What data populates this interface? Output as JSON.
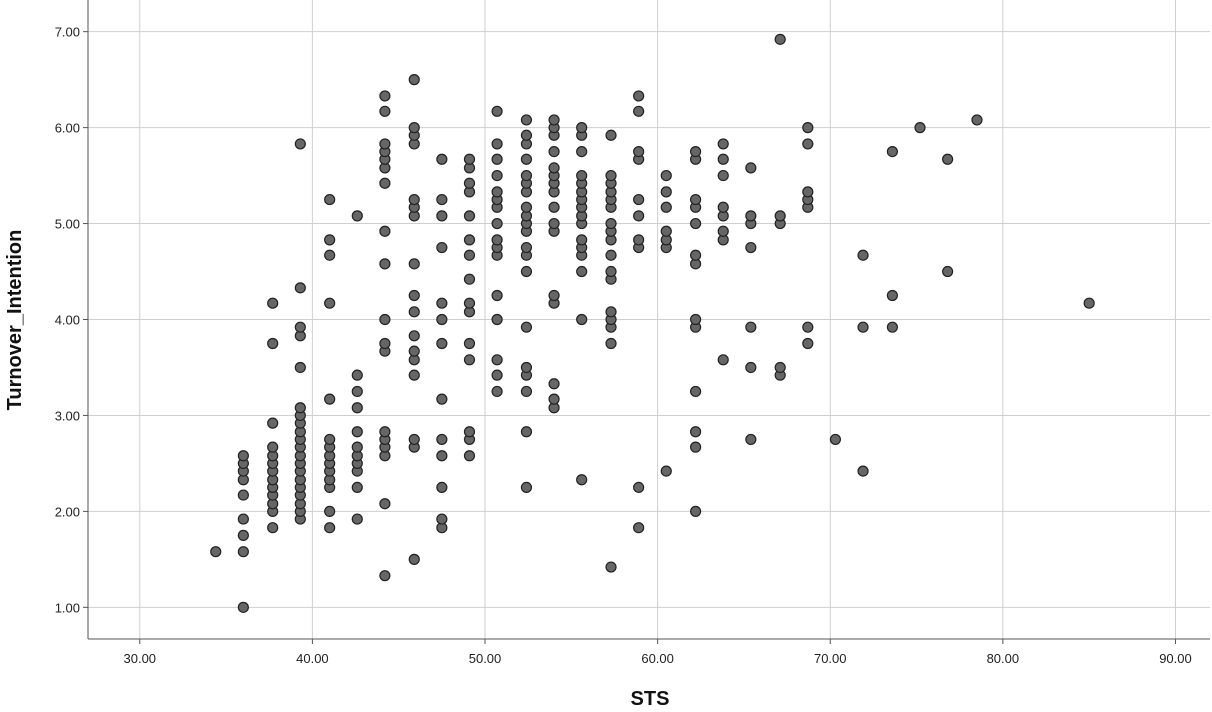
{
  "chart_data": {
    "type": "scatter",
    "title": "",
    "xlabel": "STS",
    "ylabel": "Turnover_Intention",
    "xlim": [
      27,
      92
    ],
    "ylim": [
      0.67,
      7.33
    ],
    "x_ticks": [
      30,
      40,
      50,
      60,
      70,
      80,
      90
    ],
    "y_ticks": [
      1,
      2,
      3,
      4,
      5,
      6,
      7
    ],
    "x_tick_labels": [
      "30.00",
      "40.00",
      "50.00",
      "60.00",
      "70.00",
      "80.00",
      "90.00"
    ],
    "y_tick_labels": [
      "1.00",
      "2.00",
      "3.00",
      "4.00",
      "5.00",
      "6.00",
      "7.00"
    ],
    "grid": true,
    "marker_fill": "#666666",
    "marker_stroke": "#222222",
    "grid_color": "#cfcfcf",
    "axis_color": "#555555",
    "points": [
      [
        34.4,
        1.58
      ],
      [
        36.0,
        1.0
      ],
      [
        36.0,
        1.58
      ],
      [
        36.0,
        1.75
      ],
      [
        36.0,
        1.92
      ],
      [
        36.0,
        2.17
      ],
      [
        36.0,
        2.33
      ],
      [
        36.0,
        2.42
      ],
      [
        36.0,
        2.5
      ],
      [
        36.0,
        2.58
      ],
      [
        37.7,
        1.83
      ],
      [
        37.7,
        2.0
      ],
      [
        37.7,
        2.08
      ],
      [
        37.7,
        2.17
      ],
      [
        37.7,
        2.25
      ],
      [
        37.7,
        2.33
      ],
      [
        37.7,
        2.42
      ],
      [
        37.7,
        2.5
      ],
      [
        37.7,
        2.58
      ],
      [
        37.7,
        2.67
      ],
      [
        37.7,
        2.92
      ],
      [
        37.7,
        3.75
      ],
      [
        37.7,
        4.17
      ],
      [
        39.3,
        1.92
      ],
      [
        39.3,
        2.0
      ],
      [
        39.3,
        2.08
      ],
      [
        39.3,
        2.17
      ],
      [
        39.3,
        2.25
      ],
      [
        39.3,
        2.33
      ],
      [
        39.3,
        2.42
      ],
      [
        39.3,
        2.5
      ],
      [
        39.3,
        2.58
      ],
      [
        39.3,
        2.67
      ],
      [
        39.3,
        2.75
      ],
      [
        39.3,
        2.83
      ],
      [
        39.3,
        2.92
      ],
      [
        39.3,
        3.0
      ],
      [
        39.3,
        3.08
      ],
      [
        39.3,
        3.5
      ],
      [
        39.3,
        3.83
      ],
      [
        39.3,
        3.92
      ],
      [
        39.3,
        4.33
      ],
      [
        39.3,
        5.83
      ],
      [
        41.0,
        1.83
      ],
      [
        41.0,
        2.0
      ],
      [
        41.0,
        2.25
      ],
      [
        41.0,
        2.33
      ],
      [
        41.0,
        2.42
      ],
      [
        41.0,
        2.5
      ],
      [
        41.0,
        2.58
      ],
      [
        41.0,
        2.67
      ],
      [
        41.0,
        2.75
      ],
      [
        41.0,
        3.17
      ],
      [
        41.0,
        4.17
      ],
      [
        41.0,
        4.67
      ],
      [
        41.0,
        4.83
      ],
      [
        41.0,
        5.25
      ],
      [
        42.6,
        1.92
      ],
      [
        42.6,
        2.25
      ],
      [
        42.6,
        2.42
      ],
      [
        42.6,
        2.5
      ],
      [
        42.6,
        2.58
      ],
      [
        42.6,
        2.67
      ],
      [
        42.6,
        2.83
      ],
      [
        42.6,
        3.08
      ],
      [
        42.6,
        3.25
      ],
      [
        42.6,
        3.42
      ],
      [
        42.6,
        5.08
      ],
      [
        44.2,
        1.33
      ],
      [
        44.2,
        2.08
      ],
      [
        44.2,
        2.58
      ],
      [
        44.2,
        2.67
      ],
      [
        44.2,
        2.75
      ],
      [
        44.2,
        2.83
      ],
      [
        44.2,
        3.67
      ],
      [
        44.2,
        3.75
      ],
      [
        44.2,
        4.0
      ],
      [
        44.2,
        4.58
      ],
      [
        44.2,
        4.92
      ],
      [
        44.2,
        5.42
      ],
      [
        44.2,
        5.58
      ],
      [
        44.2,
        5.67
      ],
      [
        44.2,
        5.75
      ],
      [
        44.2,
        5.83
      ],
      [
        44.2,
        6.17
      ],
      [
        44.2,
        6.33
      ],
      [
        45.9,
        1.5
      ],
      [
        45.9,
        2.67
      ],
      [
        45.9,
        2.75
      ],
      [
        45.9,
        3.42
      ],
      [
        45.9,
        3.58
      ],
      [
        45.9,
        3.67
      ],
      [
        45.9,
        3.83
      ],
      [
        45.9,
        4.08
      ],
      [
        45.9,
        4.25
      ],
      [
        45.9,
        4.58
      ],
      [
        45.9,
        5.08
      ],
      [
        45.9,
        5.17
      ],
      [
        45.9,
        5.25
      ],
      [
        45.9,
        5.83
      ],
      [
        45.9,
        5.92
      ],
      [
        45.9,
        6.0
      ],
      [
        45.9,
        6.5
      ],
      [
        47.5,
        1.83
      ],
      [
        47.5,
        1.92
      ],
      [
        47.5,
        2.25
      ],
      [
        47.5,
        2.58
      ],
      [
        47.5,
        2.75
      ],
      [
        47.5,
        3.17
      ],
      [
        47.5,
        3.75
      ],
      [
        47.5,
        4.0
      ],
      [
        47.5,
        4.17
      ],
      [
        47.5,
        4.75
      ],
      [
        47.5,
        5.08
      ],
      [
        47.5,
        5.25
      ],
      [
        47.5,
        5.67
      ],
      [
        49.1,
        2.58
      ],
      [
        49.1,
        2.75
      ],
      [
        49.1,
        2.83
      ],
      [
        49.1,
        3.58
      ],
      [
        49.1,
        3.75
      ],
      [
        49.1,
        4.08
      ],
      [
        49.1,
        4.17
      ],
      [
        49.1,
        4.42
      ],
      [
        49.1,
        4.67
      ],
      [
        49.1,
        4.83
      ],
      [
        49.1,
        5.08
      ],
      [
        49.1,
        5.33
      ],
      [
        49.1,
        5.42
      ],
      [
        49.1,
        5.58
      ],
      [
        49.1,
        5.67
      ],
      [
        50.7,
        3.25
      ],
      [
        50.7,
        3.42
      ],
      [
        50.7,
        3.58
      ],
      [
        50.7,
        4.0
      ],
      [
        50.7,
        4.25
      ],
      [
        50.7,
        4.67
      ],
      [
        50.7,
        4.75
      ],
      [
        50.7,
        4.83
      ],
      [
        50.7,
        5.0
      ],
      [
        50.7,
        5.17
      ],
      [
        50.7,
        5.25
      ],
      [
        50.7,
        5.33
      ],
      [
        50.7,
        5.5
      ],
      [
        50.7,
        5.67
      ],
      [
        50.7,
        5.83
      ],
      [
        50.7,
        6.17
      ],
      [
        52.4,
        2.25
      ],
      [
        52.4,
        2.83
      ],
      [
        52.4,
        3.25
      ],
      [
        52.4,
        3.42
      ],
      [
        52.4,
        3.5
      ],
      [
        52.4,
        3.92
      ],
      [
        52.4,
        4.5
      ],
      [
        52.4,
        4.67
      ],
      [
        52.4,
        4.75
      ],
      [
        52.4,
        4.92
      ],
      [
        52.4,
        5.0
      ],
      [
        52.4,
        5.08
      ],
      [
        52.4,
        5.17
      ],
      [
        52.4,
        5.33
      ],
      [
        52.4,
        5.42
      ],
      [
        52.4,
        5.5
      ],
      [
        52.4,
        5.67
      ],
      [
        52.4,
        5.83
      ],
      [
        52.4,
        5.92
      ],
      [
        52.4,
        6.08
      ],
      [
        54.0,
        3.08
      ],
      [
        54.0,
        3.17
      ],
      [
        54.0,
        3.33
      ],
      [
        54.0,
        4.17
      ],
      [
        54.0,
        4.25
      ],
      [
        54.0,
        4.92
      ],
      [
        54.0,
        5.0
      ],
      [
        54.0,
        5.17
      ],
      [
        54.0,
        5.33
      ],
      [
        54.0,
        5.42
      ],
      [
        54.0,
        5.5
      ],
      [
        54.0,
        5.58
      ],
      [
        54.0,
        5.75
      ],
      [
        54.0,
        5.92
      ],
      [
        54.0,
        6.0
      ],
      [
        54.0,
        6.08
      ],
      [
        55.6,
        2.33
      ],
      [
        55.6,
        4.0
      ],
      [
        55.6,
        4.5
      ],
      [
        55.6,
        4.67
      ],
      [
        55.6,
        4.75
      ],
      [
        55.6,
        4.83
      ],
      [
        55.6,
        5.0
      ],
      [
        55.6,
        5.08
      ],
      [
        55.6,
        5.17
      ],
      [
        55.6,
        5.25
      ],
      [
        55.6,
        5.33
      ],
      [
        55.6,
        5.42
      ],
      [
        55.6,
        5.5
      ],
      [
        55.6,
        5.75
      ],
      [
        55.6,
        5.92
      ],
      [
        55.6,
        6.0
      ],
      [
        57.3,
        1.42
      ],
      [
        57.3,
        3.75
      ],
      [
        57.3,
        3.92
      ],
      [
        57.3,
        4.0
      ],
      [
        57.3,
        4.08
      ],
      [
        57.3,
        4.42
      ],
      [
        57.3,
        4.5
      ],
      [
        57.3,
        4.67
      ],
      [
        57.3,
        4.83
      ],
      [
        57.3,
        4.92
      ],
      [
        57.3,
        5.0
      ],
      [
        57.3,
        5.17
      ],
      [
        57.3,
        5.25
      ],
      [
        57.3,
        5.33
      ],
      [
        57.3,
        5.42
      ],
      [
        57.3,
        5.5
      ],
      [
        57.3,
        5.92
      ],
      [
        58.9,
        1.83
      ],
      [
        58.9,
        2.25
      ],
      [
        58.9,
        4.75
      ],
      [
        58.9,
        4.83
      ],
      [
        58.9,
        5.08
      ],
      [
        58.9,
        5.25
      ],
      [
        58.9,
        5.67
      ],
      [
        58.9,
        5.75
      ],
      [
        58.9,
        6.17
      ],
      [
        58.9,
        6.33
      ],
      [
        60.5,
        2.42
      ],
      [
        60.5,
        4.75
      ],
      [
        60.5,
        4.83
      ],
      [
        60.5,
        4.92
      ],
      [
        60.5,
        5.17
      ],
      [
        60.5,
        5.33
      ],
      [
        60.5,
        5.5
      ],
      [
        62.2,
        2.0
      ],
      [
        62.2,
        2.67
      ],
      [
        62.2,
        2.83
      ],
      [
        62.2,
        3.25
      ],
      [
        62.2,
        3.92
      ],
      [
        62.2,
        4.0
      ],
      [
        62.2,
        4.58
      ],
      [
        62.2,
        4.67
      ],
      [
        62.2,
        5.0
      ],
      [
        62.2,
        5.17
      ],
      [
        62.2,
        5.25
      ],
      [
        62.2,
        5.67
      ],
      [
        62.2,
        5.75
      ],
      [
        63.8,
        3.58
      ],
      [
        63.8,
        4.83
      ],
      [
        63.8,
        4.92
      ],
      [
        63.8,
        5.08
      ],
      [
        63.8,
        5.17
      ],
      [
        63.8,
        5.5
      ],
      [
        63.8,
        5.67
      ],
      [
        63.8,
        5.83
      ],
      [
        65.4,
        2.75
      ],
      [
        65.4,
        3.5
      ],
      [
        65.4,
        3.92
      ],
      [
        65.4,
        4.75
      ],
      [
        65.4,
        5.0
      ],
      [
        65.4,
        5.08
      ],
      [
        65.4,
        5.58
      ],
      [
        67.1,
        3.42
      ],
      [
        67.1,
        3.5
      ],
      [
        67.1,
        5.0
      ],
      [
        67.1,
        5.08
      ],
      [
        67.1,
        6.92
      ],
      [
        68.7,
        3.75
      ],
      [
        68.7,
        3.92
      ],
      [
        68.7,
        5.17
      ],
      [
        68.7,
        5.25
      ],
      [
        68.7,
        5.33
      ],
      [
        68.7,
        5.83
      ],
      [
        68.7,
        6.0
      ],
      [
        70.3,
        2.75
      ],
      [
        71.9,
        2.42
      ],
      [
        71.9,
        3.92
      ],
      [
        71.9,
        4.67
      ],
      [
        73.6,
        3.92
      ],
      [
        73.6,
        4.25
      ],
      [
        73.6,
        5.75
      ],
      [
        75.2,
        6.0
      ],
      [
        76.8,
        4.5
      ],
      [
        76.8,
        5.67
      ],
      [
        78.5,
        6.08
      ],
      [
        85.0,
        4.17
      ]
    ]
  }
}
